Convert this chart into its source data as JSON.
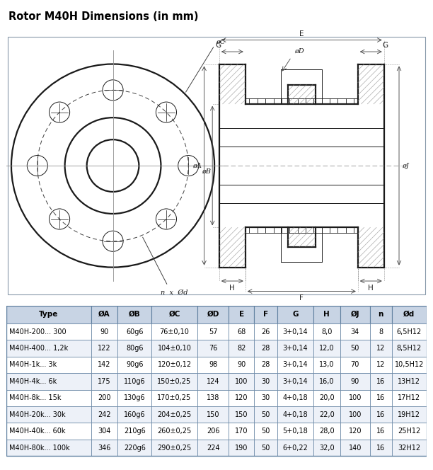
{
  "title": "Rotor M40H Dimensions (in mm)",
  "title_fontsize": 10.5,
  "table_headers": [
    "Type",
    "ØA",
    "ØB",
    "ØC",
    "ØD",
    "E",
    "F",
    "G",
    "H",
    "ØJ",
    "n",
    "Ød"
  ],
  "table_rows": [
    [
      "M40H-200... 300",
      "90",
      "60g6",
      "76±0,10",
      "57",
      "68",
      "26",
      "3+0,14",
      "8,0",
      "34",
      "8",
      "6,5H12"
    ],
    [
      "M40H-400... 1,2k",
      "122",
      "80g6",
      "104±0,10",
      "76",
      "82",
      "28",
      "3+0,14",
      "12,0",
      "50",
      "12",
      "8,5H12"
    ],
    [
      "M40H-1k... 3k",
      "142",
      "90g6",
      "120±0,12",
      "98",
      "90",
      "28",
      "3+0,14",
      "13,0",
      "70",
      "12",
      "10,5H12"
    ],
    [
      "M40H-4k... 6k",
      "175",
      "110g6",
      "150±0,25",
      "124",
      "100",
      "30",
      "3+0,14",
      "16,0",
      "90",
      "16",
      "13H12"
    ],
    [
      "M40H-8k... 15k",
      "200",
      "130g6",
      "170±0,25",
      "138",
      "120",
      "30",
      "4+0,18",
      "20,0",
      "100",
      "16",
      "17H12"
    ],
    [
      "M40H-20k... 30k",
      "242",
      "160g6",
      "204±0,25",
      "150",
      "150",
      "50",
      "4+0,18",
      "22,0",
      "100",
      "16",
      "19H12"
    ],
    [
      "M40H-40k... 60k",
      "304",
      "210g6",
      "260±0,25",
      "206",
      "170",
      "50",
      "5+0,18",
      "28,0",
      "120",
      "16",
      "25H12"
    ],
    [
      "M40H-80k... 100k",
      "346",
      "220g6",
      "290±0,25",
      "224",
      "190",
      "50",
      "6+0,22",
      "32,0",
      "140",
      "16",
      "32H12"
    ]
  ],
  "header_bg": "#c8d4e4",
  "row_bg_odd": "#ffffff",
  "row_bg_even": "#edf1f8",
  "border_color": "#6080a0",
  "text_color": "#000000",
  "line_color": "#1a1a1a",
  "dim_line_color": "#404040",
  "center_line_color": "#909090",
  "hatch_color": "#888888",
  "thick_line": 1.6,
  "thin_line": 0.7,
  "dim_lw": 0.6
}
